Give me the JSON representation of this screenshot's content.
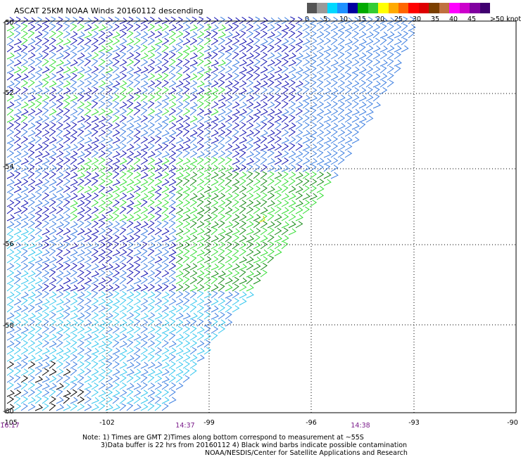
{
  "title": "ASCAT 25KM NOAA Winds 20160112 descending",
  "scale": {
    "labels": [
      "0",
      "5",
      "10",
      "15",
      "20",
      "25",
      "30",
      "35",
      "40",
      "45",
      ">50 knots"
    ],
    "colors": [
      "#555555",
      "#9a9a9a",
      "#00d8ff",
      "#1e90ff",
      "#0000a0",
      "#00aa00",
      "#33cc33",
      "#ffff00",
      "#ffaa00",
      "#ff6600",
      "#ff0000",
      "#dd0000",
      "#7b3f00",
      "#c07040",
      "#ff00ff",
      "#cc00cc",
      "#8000a0",
      "#400070"
    ]
  },
  "axes": {
    "lat_labels": [
      "-50",
      "-52",
      "-54",
      "-56",
      "-58",
      "-60"
    ],
    "lon_labels": [
      "-105",
      "-102",
      "-99",
      "-96",
      "-93",
      "-90"
    ],
    "times": [
      "16:17",
      "14:37",
      "14:38"
    ]
  },
  "notes": [
    "Note: 1) Times are GMT 2)Times along bottom correspond to measurement at ~55S",
    "3)Data buffer is 22 hrs from 20160112 4) Black wind barbs indicate possible contamination",
    "NOAA/NESDIS/Center for Satellite Applications and Research"
  ],
  "colors": {
    "light_blue": "#33c6ee",
    "mid_blue": "#3a7de0",
    "dark_blue": "#1010b0",
    "green": "#33dd33",
    "dark_green": "#118811",
    "contaminated": "#000000",
    "yellow": "#e8d800"
  }
}
